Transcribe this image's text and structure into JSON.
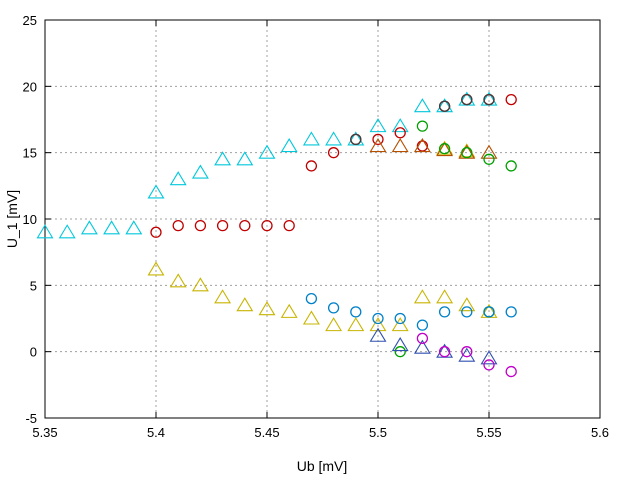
{
  "chart_data": {
    "type": "scatter",
    "title": "",
    "xlabel": "Ub [mV]",
    "ylabel": "U_1 [mV]",
    "xlim": [
      5.35,
      5.6
    ],
    "ylim": [
      -5,
      25
    ],
    "xticks": [
      "5.35",
      "5.4",
      "5.45",
      "5.5",
      "5.55",
      "5.6"
    ],
    "xtick_values": [
      5.35,
      5.4,
      5.45,
      5.5,
      5.55,
      5.6
    ],
    "yticks": [
      "-5",
      "0",
      "5",
      "10",
      "15",
      "20",
      "25"
    ],
    "ytick_values": [
      -5,
      0,
      5,
      10,
      15,
      20,
      25
    ],
    "grid": true,
    "legend": "none",
    "series": [
      {
        "marker": "triangle",
        "color": "#00c8dc",
        "points": [
          [
            5.35,
            9.0
          ],
          [
            5.36,
            9.0
          ],
          [
            5.37,
            9.3
          ],
          [
            5.38,
            9.3
          ],
          [
            5.39,
            9.3
          ],
          [
            5.4,
            12.0
          ],
          [
            5.41,
            13.0
          ],
          [
            5.42,
            13.5
          ],
          [
            5.43,
            14.5
          ],
          [
            5.44,
            14.5
          ],
          [
            5.45,
            15.0
          ],
          [
            5.46,
            15.5
          ],
          [
            5.47,
            16.0
          ],
          [
            5.48,
            16.0
          ],
          [
            5.49,
            16.0
          ],
          [
            5.5,
            17.0
          ],
          [
            5.51,
            17.0
          ],
          [
            5.52,
            18.5
          ],
          [
            5.53,
            18.5
          ],
          [
            5.54,
            19.0
          ],
          [
            5.55,
            19.0
          ]
        ]
      },
      {
        "marker": "triangle",
        "color": "#c8b400",
        "points": [
          [
            5.4,
            6.2
          ],
          [
            5.41,
            5.3
          ],
          [
            5.42,
            5.0
          ],
          [
            5.43,
            4.1
          ],
          [
            5.44,
            3.5
          ],
          [
            5.45,
            3.2
          ],
          [
            5.46,
            3.0
          ],
          [
            5.47,
            2.5
          ],
          [
            5.48,
            2.0
          ],
          [
            5.49,
            2.0
          ],
          [
            5.5,
            2.0
          ],
          [
            5.51,
            2.0
          ],
          [
            5.52,
            4.1
          ],
          [
            5.53,
            4.1
          ],
          [
            5.54,
            3.5
          ],
          [
            5.55,
            3.0
          ],
          [
            5.53,
            15.3
          ],
          [
            5.54,
            15.1
          ]
        ]
      },
      {
        "marker": "circle",
        "color": "#c00000",
        "points": [
          [
            5.4,
            9.0
          ],
          [
            5.41,
            9.5
          ],
          [
            5.42,
            9.5
          ],
          [
            5.43,
            9.5
          ],
          [
            5.44,
            9.5
          ],
          [
            5.45,
            9.5
          ],
          [
            5.46,
            9.5
          ],
          [
            5.47,
            14.0
          ],
          [
            5.48,
            15.0
          ],
          [
            5.49,
            16.0
          ],
          [
            5.5,
            16.0
          ],
          [
            5.51,
            16.5
          ],
          [
            5.52,
            15.5
          ],
          [
            5.53,
            18.5
          ],
          [
            5.54,
            19.0
          ],
          [
            5.55,
            19.0
          ],
          [
            5.56,
            19.0
          ]
        ]
      },
      {
        "marker": "triangle",
        "color": "#b45000",
        "points": [
          [
            5.5,
            15.5
          ],
          [
            5.51,
            15.5
          ],
          [
            5.52,
            15.5
          ],
          [
            5.53,
            15.2
          ],
          [
            5.54,
            15.0
          ],
          [
            5.55,
            15.0
          ]
        ]
      },
      {
        "marker": "circle",
        "color": "#00a000",
        "points": [
          [
            5.52,
            17.0
          ],
          [
            5.53,
            15.3
          ],
          [
            5.54,
            15.0
          ],
          [
            5.55,
            14.5
          ],
          [
            5.56,
            14.0
          ],
          [
            5.51,
            0.0
          ],
          [
            5.55,
            3.0
          ]
        ]
      },
      {
        "marker": "circle",
        "color": "#0080c8",
        "points": [
          [
            5.47,
            4.0
          ],
          [
            5.48,
            3.3
          ],
          [
            5.49,
            3.0
          ],
          [
            5.5,
            2.5
          ],
          [
            5.51,
            2.5
          ],
          [
            5.52,
            2.0
          ],
          [
            5.53,
            3.0
          ],
          [
            5.54,
            3.0
          ],
          [
            5.55,
            3.0
          ],
          [
            5.56,
            3.0
          ]
        ]
      },
      {
        "marker": "triangle",
        "color": "#3050b0",
        "points": [
          [
            5.5,
            1.2
          ],
          [
            5.51,
            0.5
          ],
          [
            5.52,
            0.3
          ],
          [
            5.53,
            0.0
          ],
          [
            5.54,
            -0.3
          ],
          [
            5.55,
            -0.5
          ]
        ]
      },
      {
        "marker": "circle",
        "color": "#c000c8",
        "points": [
          [
            5.52,
            1.0
          ],
          [
            5.53,
            0.0
          ],
          [
            5.54,
            0.0
          ],
          [
            5.55,
            -1.0
          ],
          [
            5.56,
            -1.5
          ]
        ]
      },
      {
        "marker": "circle",
        "color": "#404040",
        "points": [
          [
            5.49,
            16.0
          ],
          [
            5.53,
            18.5
          ],
          [
            5.54,
            19.0
          ],
          [
            5.55,
            19.0
          ]
        ]
      }
    ]
  }
}
